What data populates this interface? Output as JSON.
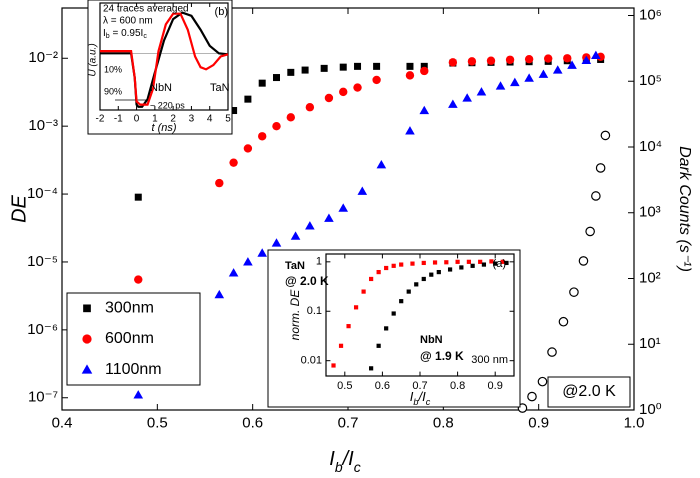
{
  "chart_data": [
    {
      "type": "scatter",
      "x_label": [
        "I",
        "b",
        "/I",
        "c"
      ],
      "y_label": "DE",
      "y2_label": "Dark Counts (s⁻¹)",
      "xlim": [
        0.4,
        1.0
      ],
      "xticks": [
        0.4,
        0.5,
        0.6,
        0.7,
        0.8,
        0.9,
        {
          "value": 1.0,
          "label": "1.0"
        }
      ],
      "ylim": [
        6.6e-08,
        0.055
      ],
      "ylog": true,
      "yticks": [
        {
          "value": 1e-07,
          "label": "10⁻⁷"
        },
        {
          "value": 1e-06,
          "label": "10⁻⁶"
        },
        {
          "value": 1e-05,
          "label": "10⁻⁵"
        },
        {
          "value": 0.0001,
          "label": "10⁻⁴"
        },
        {
          "value": 0.001,
          "label": "10⁻³"
        },
        {
          "value": 0.01,
          "label": "10⁻²"
        }
      ],
      "y2lim": [
        1,
        1300000
      ],
      "y2log": true,
      "y2ticks": [
        {
          "value": 1,
          "label": "10⁰"
        },
        {
          "value": 10,
          "label": "10¹"
        },
        {
          "value": 100,
          "label": "10²"
        },
        {
          "value": 1000,
          "label": "10³"
        },
        {
          "value": 10000,
          "label": "10⁴"
        },
        {
          "value": 100000,
          "label": "10⁵"
        },
        {
          "value": 1000000,
          "label": "10⁶"
        }
      ],
      "legend": "lower left",
      "annotations": [
        "@2.0 K"
      ],
      "series": [
        {
          "name": "300nm",
          "color": "#000000",
          "marker": "square",
          "x": [
            0.48,
            0.565,
            0.58,
            0.595,
            0.61,
            0.625,
            0.64,
            0.655,
            0.675,
            0.695,
            0.71,
            0.73,
            0.765,
            0.78,
            0.81,
            0.83,
            0.85,
            0.87,
            0.89,
            0.91,
            0.93,
            0.95,
            0.965
          ],
          "values": [
            9e-05,
            0.0009,
            0.0017,
            0.0025,
            0.0043,
            0.0052,
            0.0062,
            0.0067,
            0.0071,
            0.0074,
            0.0076,
            0.0076,
            0.0076,
            0.0076,
            0.0085,
            0.0086,
            0.0087,
            0.0088,
            0.0089,
            0.009,
            0.0092,
            0.0094,
            0.0096
          ]
        },
        {
          "name": "600nm",
          "color": "#ff0000",
          "marker": "circle",
          "x": [
            0.48,
            0.565,
            0.58,
            0.595,
            0.61,
            0.625,
            0.64,
            0.66,
            0.68,
            0.695,
            0.71,
            0.73,
            0.765,
            0.78,
            0.81,
            0.83,
            0.85,
            0.87,
            0.89,
            0.91,
            0.93,
            0.95,
            0.965
          ],
          "values": [
            5.5e-06,
            0.000145,
            0.00029,
            0.00047,
            0.00071,
            0.001,
            0.00135,
            0.0019,
            0.0026,
            0.0032,
            0.0037,
            0.0048,
            0.0056,
            0.0065,
            0.0087,
            0.009,
            0.0092,
            0.0095,
            0.0097,
            0.0099,
            0.01,
            0.0103,
            0.0105
          ]
        },
        {
          "name": "1100nm",
          "color": "#0000ff",
          "marker": "triangle",
          "x": [
            0.48,
            0.565,
            0.58,
            0.595,
            0.61,
            0.625,
            0.645,
            0.66,
            0.68,
            0.695,
            0.715,
            0.735,
            0.765,
            0.78,
            0.81,
            0.825,
            0.84,
            0.86,
            0.875,
            0.89,
            0.905,
            0.92,
            0.935,
            0.95,
            0.96
          ],
          "values": [
            1.1e-07,
            3.3e-06,
            6.9e-06,
            1e-05,
            1.35e-05,
            1.9e-05,
            2.4e-05,
            3.4e-05,
            4.4e-05,
            6.2e-05,
            0.00011,
            0.00027,
            0.00085,
            0.0017,
            0.0021,
            0.0026,
            0.0032,
            0.0039,
            0.0044,
            0.0051,
            0.0058,
            0.0067,
            0.0079,
            0.0093,
            0.011
          ]
        },
        {
          "color": "#000000",
          "marker": "open-circle",
          "axis": "y2",
          "x": [
            0.883,
            0.893,
            0.904,
            0.914,
            0.926,
            0.937,
            0.947,
            0.954,
            0.96,
            0.965,
            0.97
          ],
          "values": [
            1.07,
            1.6,
            2.7,
            7.6,
            22,
            62,
            185,
            520,
            1800,
            4800,
            15000
          ]
        }
      ]
    },
    {
      "type": "scatter",
      "x_label": [
        "I",
        "b",
        "/I",
        "c"
      ],
      "y_label": "norm. DE",
      "xlim": [
        0.45,
        0.95
      ],
      "xticks": [
        0.5,
        0.6,
        0.7,
        0.8,
        0.9
      ],
      "ylim": [
        0.0049,
        1.44
      ],
      "ylog": true,
      "yticks": [
        0.01,
        0.1,
        1
      ],
      "annotations": [
        "(a)",
        "@ 2.0 K",
        "@ 1.9 K",
        "300 nm"
      ],
      "series": [
        {
          "name": "TaN",
          "color": "#ff0000",
          "marker": "square",
          "x": [
            0.47,
            0.49,
            0.51,
            0.53,
            0.55,
            0.57,
            0.59,
            0.61,
            0.63,
            0.65,
            0.68,
            0.71,
            0.74,
            0.77,
            0.8,
            0.83,
            0.86,
            0.89,
            0.92
          ],
          "values": [
            0.008,
            0.02,
            0.05,
            0.12,
            0.25,
            0.45,
            0.62,
            0.75,
            0.83,
            0.88,
            0.92,
            0.95,
            0.97,
            0.98,
            1.0,
            1.0,
            1.0,
            1.02,
            1.0
          ]
        },
        {
          "name": "NbN",
          "color": "#000000",
          "marker": "square",
          "x": [
            0.57,
            0.59,
            0.61,
            0.63,
            0.65,
            0.67,
            0.69,
            0.71,
            0.73,
            0.75,
            0.78,
            0.81,
            0.84,
            0.87,
            0.9,
            0.93
          ],
          "values": [
            0.007,
            0.02,
            0.045,
            0.09,
            0.16,
            0.25,
            0.35,
            0.45,
            0.55,
            0.62,
            0.7,
            0.77,
            0.83,
            0.88,
            0.92,
            0.95
          ]
        }
      ]
    },
    {
      "type": "line",
      "x_label": "t (ns)",
      "y_label": "U (a.u.)",
      "xlim": [
        -2,
        5
      ],
      "xticks": [
        -2,
        -1,
        0,
        1,
        2,
        3,
        4,
        5
      ],
      "ylim": [
        0,
        1
      ],
      "annotations": [
        "24 traces averaged",
        "λ = 600 nm",
        [
          "I",
          "b",
          " = 0.95I",
          "c"
        ],
        "(b)",
        "10%",
        "90%",
        "~ 220 ps"
      ],
      "series": [
        {
          "name": "NbN",
          "color": "#000000",
          "x": [
            -2,
            -1,
            -0.3,
            -0.1,
            0,
            0.1,
            0.3,
            0.6,
            1,
            1.5,
            2,
            2.5,
            3,
            3.5,
            4,
            4.5,
            5
          ],
          "values": [
            0.53,
            0.53,
            0.53,
            0.3,
            0.05,
            0.03,
            0.03,
            0.1,
            0.35,
            0.65,
            0.85,
            0.91,
            0.88,
            0.75,
            0.6,
            0.53,
            0.52
          ]
        },
        {
          "name": "TaN",
          "color": "#ff0000",
          "x": [
            -2,
            -1,
            -0.3,
            -0.1,
            0,
            0.2,
            0.6,
            0.9,
            1.2,
            1.6,
            2,
            2.4,
            2.8,
            3.2,
            3.5,
            3.8,
            4.2,
            4.6,
            5
          ],
          "values": [
            0.55,
            0.55,
            0.55,
            0.3,
            0.08,
            0.05,
            0.05,
            0.2,
            0.55,
            0.8,
            0.9,
            0.9,
            0.75,
            0.5,
            0.4,
            0.38,
            0.42,
            0.5,
            0.52
          ]
        }
      ]
    }
  ]
}
